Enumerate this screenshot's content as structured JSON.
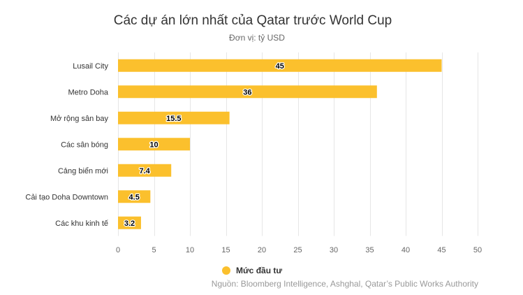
{
  "chart_data": {
    "type": "bar",
    "orientation": "horizontal",
    "title": "Các dự án lớn nhất của Qatar trước World Cup",
    "subtitle": "Đơn vị: tỷ USD",
    "categories": [
      "Lusail City",
      "Metro Doha",
      "Mở rộng sân bay",
      "Các sân bóng",
      "Cảng biển mới",
      "Cải tạo Doha Downtown",
      "Các khu kinh tế"
    ],
    "series": [
      {
        "name": "Mức đầu tư",
        "values": [
          45,
          36,
          15.5,
          10,
          7.4,
          4.5,
          3.2
        ],
        "color": "#fbc02d"
      }
    ],
    "xlim": [
      0,
      50
    ],
    "x_ticks": [
      0,
      5,
      10,
      15,
      20,
      25,
      30,
      35,
      40,
      45,
      50
    ],
    "grid": true,
    "legend": "bottom",
    "source": "Nguồn: Bloomberg Intelligence, Ashghal, Qatar’s Public Works Authority"
  }
}
